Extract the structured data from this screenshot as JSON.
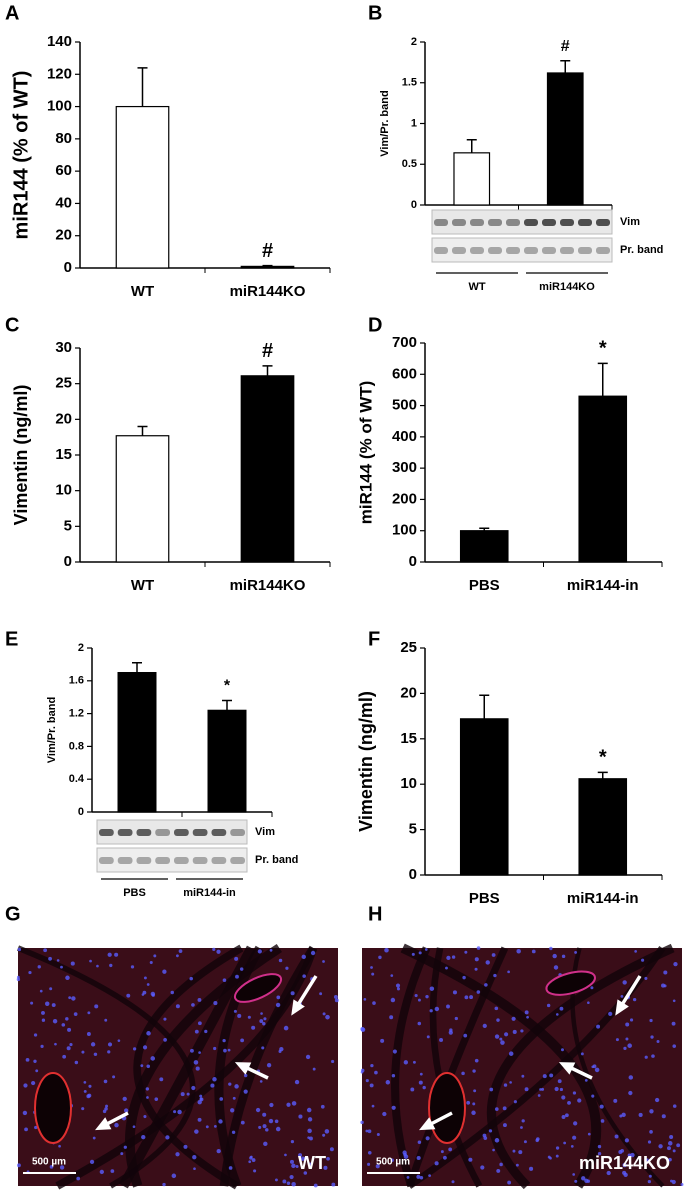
{
  "chart_data": [
    {
      "type": "bar",
      "panel": "A",
      "ylabel": "miR144 (% of WT)",
      "categories": [
        "WT",
        "miR144KO"
      ],
      "values": [
        100,
        1
      ],
      "errors": [
        24,
        0.5
      ],
      "colors": [
        "#ffffff",
        "#000000"
      ],
      "significance": [
        null,
        "#"
      ],
      "ylim": [
        0,
        140
      ],
      "yticks": [
        0,
        20,
        40,
        60,
        80,
        100,
        120,
        140
      ]
    },
    {
      "type": "bar",
      "panel": "B",
      "ylabel": "Vim/Pr. band",
      "categories": [
        "WT",
        "miR144KO"
      ],
      "values": [
        0.64,
        1.62
      ],
      "errors": [
        0.16,
        0.15
      ],
      "colors": [
        "#ffffff",
        "#000000"
      ],
      "significance": [
        null,
        "#"
      ],
      "ylim": [
        0,
        2
      ],
      "yticks": [
        0,
        0.5,
        1,
        1.5,
        2
      ],
      "blot": {
        "bands": [
          "Vim",
          "Pr. band"
        ],
        "groups": [
          "WT",
          "miR144KO"
        ]
      }
    },
    {
      "type": "bar",
      "panel": "C",
      "ylabel": "Vimentin (ng/ml)",
      "categories": [
        "WT",
        "miR144KO"
      ],
      "values": [
        17.7,
        26.1
      ],
      "errors": [
        1.3,
        1.4
      ],
      "colors": [
        "#ffffff",
        "#000000"
      ],
      "significance": [
        null,
        "#"
      ],
      "ylim": [
        0,
        30
      ],
      "yticks": [
        0,
        5,
        10,
        15,
        20,
        25,
        30
      ]
    },
    {
      "type": "bar",
      "panel": "D",
      "ylabel": "miR144 (% of WT)",
      "categories": [
        "PBS",
        "miR144-in"
      ],
      "values": [
        100,
        530
      ],
      "errors": [
        8,
        105
      ],
      "colors": [
        "#000000",
        "#000000"
      ],
      "significance": [
        null,
        "*"
      ],
      "ylim": [
        0,
        700
      ],
      "yticks": [
        0,
        100,
        200,
        300,
        400,
        500,
        600,
        700
      ]
    },
    {
      "type": "bar",
      "panel": "E",
      "ylabel": "Vim/Pr. band",
      "categories": [
        "PBS",
        "miR144-in"
      ],
      "values": [
        1.7,
        1.24
      ],
      "errors": [
        0.12,
        0.12
      ],
      "colors": [
        "#000000",
        "#000000"
      ],
      "significance": [
        null,
        "*"
      ],
      "ylim": [
        0,
        2
      ],
      "yticks": [
        0,
        0.4,
        0.8,
        1.2,
        1.6,
        2
      ],
      "blot": {
        "bands": [
          "Vim",
          "Pr. band"
        ],
        "groups": [
          "PBS",
          "miR144-in"
        ]
      }
    },
    {
      "type": "bar",
      "panel": "F",
      "ylabel": "Vimentin (ng/ml)",
      "categories": [
        "PBS",
        "miR144-in"
      ],
      "values": [
        17.2,
        10.6
      ],
      "errors": [
        2.6,
        0.7
      ],
      "colors": [
        "#000000",
        "#000000"
      ],
      "significance": [
        null,
        "*"
      ],
      "ylim": [
        0,
        25
      ],
      "yticks": [
        0,
        5,
        10,
        15,
        20,
        25
      ]
    }
  ],
  "images": [
    {
      "panel": "G",
      "scale_bar": "500 µm",
      "label": "WT"
    },
    {
      "panel": "H",
      "scale_bar": "500 µm",
      "label": "miR144KO"
    }
  ]
}
